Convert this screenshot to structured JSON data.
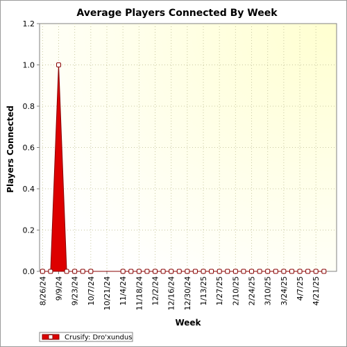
{
  "chart_data": {
    "type": "area",
    "title": "Average Players Connected By Week",
    "xlabel": "Week",
    "ylabel": "Players Connected",
    "ylim": [
      0,
      1.2
    ],
    "y_ticks": [
      "0.0",
      "0.2",
      "0.4",
      "0.6",
      "0.8",
      "1.0",
      "1.2"
    ],
    "x_tick_labels": [
      "8/26/24",
      "9/9/24",
      "9/23/24",
      "10/7/24",
      "10/21/24",
      "11/4/24",
      "11/18/24",
      "12/2/24",
      "12/16/24",
      "12/30/24",
      "1/13/25",
      "1/27/25",
      "2/10/25",
      "2/24/25",
      "3/10/25",
      "3/24/25",
      "4/7/25",
      "4/21/25"
    ],
    "x": [
      "8/26/24",
      "9/2/24",
      "9/9/24",
      "9/16/24",
      "9/23/24",
      "9/30/24",
      "10/7/24",
      "11/4/24",
      "11/11/24",
      "11/18/24",
      "11/25/24",
      "12/2/24",
      "12/9/24",
      "12/16/24",
      "12/23/24",
      "12/30/24",
      "1/6/25",
      "1/13/25",
      "1/20/25",
      "1/27/25",
      "2/3/25",
      "2/10/25",
      "2/17/25",
      "2/24/25",
      "3/3/25",
      "3/10/25",
      "3/17/25",
      "3/24/25",
      "3/31/25",
      "4/7/25",
      "4/14/25",
      "4/21/25",
      "4/28/25"
    ],
    "series": [
      {
        "name": "Crusify: Dro'xundus",
        "values": [
          0,
          0,
          1.0,
          0,
          0,
          0,
          0,
          0,
          0,
          0,
          0,
          0,
          0,
          0,
          0,
          0,
          0,
          0,
          0,
          0,
          0,
          0,
          0,
          0,
          0,
          0,
          0,
          0,
          0,
          0,
          0,
          0,
          0
        ],
        "color": "#dd0000"
      }
    ],
    "grid": true,
    "legend_position": "bottom-left",
    "plot_background": "#ffffe8"
  }
}
